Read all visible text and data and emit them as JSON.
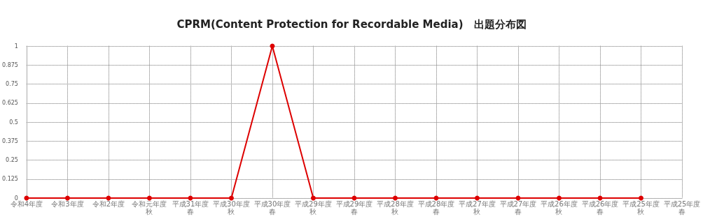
{
  "chart_data": {
    "type": "line",
    "title": "CPRM(Content Protection for Recordable Media)　出題分布図",
    "categories": [
      "令和4年度",
      "令和3年度",
      "令和2年度",
      "令和元年度秋",
      "平成31年度春",
      "平成30年度秋",
      "平成30年度春",
      "平成29年度秋",
      "平成29年度春",
      "平成28年度秋",
      "平成28年度春",
      "平成27年度秋",
      "平成27年度春",
      "平成26年度秋",
      "平成26年度春",
      "平成25年度秋",
      "平成25年度春"
    ],
    "series": [
      {
        "color": "#dd0000",
        "values": [
          0,
          0,
          0,
          0,
          0,
          0,
          1,
          0,
          0,
          0,
          0,
          0,
          0,
          0,
          0,
          0,
          null
        ]
      }
    ],
    "ylim": [
      0,
      1
    ],
    "yticks": [
      0,
      0.125,
      0.25,
      0.375,
      0.5,
      0.625,
      0.75,
      0.875,
      1
    ],
    "grid": true,
    "marker": "circle",
    "line_style": "solid"
  }
}
